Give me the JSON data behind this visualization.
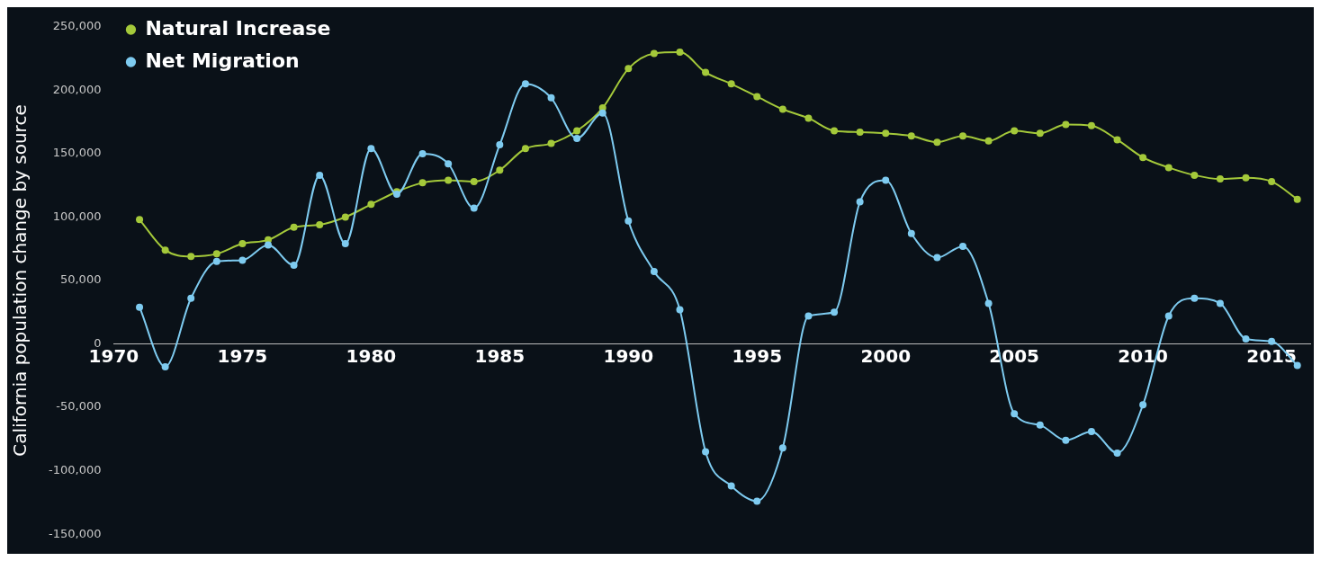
{
  "chart_data": {
    "type": "line",
    "ylabel": "California population change by source",
    "x": [
      1971,
      1972,
      1973,
      1974,
      1975,
      1976,
      1977,
      1978,
      1979,
      1980,
      1981,
      1982,
      1983,
      1984,
      1985,
      1986,
      1987,
      1988,
      1989,
      1990,
      1991,
      1992,
      1993,
      1994,
      1995,
      1996,
      1997,
      1998,
      1999,
      2000,
      2001,
      2002,
      2003,
      2004,
      2005,
      2006,
      2007,
      2008,
      2009,
      2010,
      2011,
      2012,
      2013,
      2014,
      2015,
      2016
    ],
    "series": [
      {
        "name": "Natural Increase",
        "color": "#a4c93a",
        "values": [
          98000,
          74000,
          69000,
          71000,
          79000,
          82000,
          92000,
          94000,
          100000,
          110000,
          120000,
          127000,
          129000,
          128000,
          137000,
          154000,
          158000,
          168000,
          186000,
          217000,
          229000,
          230000,
          214000,
          205000,
          195000,
          185000,
          178000,
          168000,
          167000,
          166000,
          164000,
          159000,
          164000,
          160000,
          168000,
          166000,
          173000,
          172000,
          161000,
          147000,
          139000,
          133000,
          130000,
          131000,
          128000,
          114000
        ]
      },
      {
        "name": "Net Migration",
        "color": "#7ecbf0",
        "values": [
          29000,
          -18000,
          36000,
          65000,
          66000,
          78000,
          62000,
          133000,
          79000,
          154000,
          118000,
          150000,
          142000,
          107000,
          157000,
          205000,
          194000,
          162000,
          182000,
          97000,
          57000,
          27000,
          -85000,
          -112000,
          -124000,
          -82000,
          22000,
          25000,
          112000,
          129000,
          87000,
          68000,
          77000,
          32000,
          -55000,
          -64000,
          -76000,
          -69000,
          -86000,
          -48000,
          22000,
          36000,
          32000,
          4000,
          2000,
          -17000
        ]
      }
    ],
    "xlim": [
      1970,
      2016.5
    ],
    "xticks": [
      1970,
      1975,
      1980,
      1985,
      1990,
      1995,
      2000,
      2005,
      2010,
      2015
    ],
    "ylim": [
      -150000,
      250000
    ],
    "yticks": [
      {
        "value": -150000,
        "label": "-150,000"
      },
      {
        "value": -100000,
        "label": "-100,000"
      },
      {
        "value": -50000,
        "label": "-50,000"
      },
      0,
      {
        "value": 50000,
        "label": "50,000"
      },
      {
        "value": 100000,
        "label": "100,000"
      },
      {
        "value": 150000,
        "label": "150,000"
      },
      {
        "value": 200000,
        "label": "200,000"
      },
      {
        "value": 250000,
        "label": "250,000"
      }
    ],
    "grid": false,
    "legend": "top left",
    "marker": "circle"
  }
}
